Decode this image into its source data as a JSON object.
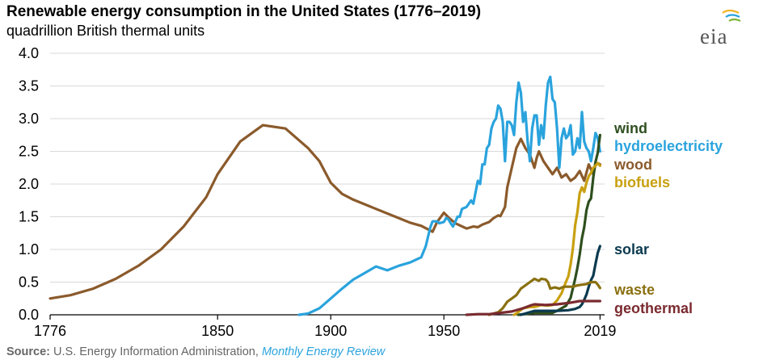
{
  "title": "Renewable energy consumption in the United States (1776–2019)",
  "subtitle": "quadrillion British thermal units",
  "logo_text": "eia",
  "logo_icon": "eia-sun-arc-icon",
  "source": {
    "label": "Source:",
    "org": "U.S. Energy Information Administration,",
    "publication": "Monthly Energy Review"
  },
  "chart_data": {
    "type": "line",
    "title": "Renewable energy consumption in the United States (1776–2019)",
    "ylabel": "quadrillion British thermal units",
    "xlabel": "",
    "xlim": [
      1776,
      2021
    ],
    "ylim": [
      0,
      4.0
    ],
    "grid": true,
    "y_ticks": [
      0.0,
      0.5,
      1.0,
      1.5,
      2.0,
      2.5,
      3.0,
      3.5,
      4.0
    ],
    "y_tick_labels": [
      "0.0",
      "0.5",
      "1.0",
      "1.5",
      "2.0",
      "2.5",
      "3.0",
      "3.5",
      "4.0"
    ],
    "x_ticks": [
      1776,
      1850,
      1900,
      1950,
      2019
    ],
    "x_tick_labels": [
      "1776",
      "1850",
      "1900",
      "1950",
      "2019"
    ],
    "legend_position": "right of plot, labels at line ends",
    "series": [
      {
        "name": "wood",
        "color": "#8b5a2b",
        "points": [
          [
            1776,
            0.25
          ],
          [
            1785,
            0.3
          ],
          [
            1795,
            0.4
          ],
          [
            1805,
            0.55
          ],
          [
            1815,
            0.75
          ],
          [
            1825,
            1.0
          ],
          [
            1835,
            1.35
          ],
          [
            1845,
            1.8
          ],
          [
            1850,
            2.15
          ],
          [
            1860,
            2.65
          ],
          [
            1870,
            2.9
          ],
          [
            1880,
            2.85
          ],
          [
            1890,
            2.55
          ],
          [
            1895,
            2.35
          ],
          [
            1900,
            2.02
          ],
          [
            1905,
            1.85
          ],
          [
            1910,
            1.76
          ],
          [
            1920,
            1.62
          ],
          [
            1930,
            1.48
          ],
          [
            1935,
            1.41
          ],
          [
            1940,
            1.36
          ],
          [
            1945,
            1.27
          ],
          [
            1947,
            1.42
          ],
          [
            1950,
            1.56
          ],
          [
            1952,
            1.49
          ],
          [
            1955,
            1.4
          ],
          [
            1960,
            1.32
          ],
          [
            1963,
            1.35
          ],
          [
            1965,
            1.34
          ],
          [
            1967,
            1.38
          ],
          [
            1970,
            1.42
          ],
          [
            1972,
            1.48
          ],
          [
            1974,
            1.52
          ],
          [
            1975,
            1.51
          ],
          [
            1977,
            1.65
          ],
          [
            1978,
            1.95
          ],
          [
            1980,
            2.25
          ],
          [
            1982,
            2.55
          ],
          [
            1984,
            2.69
          ],
          [
            1986,
            2.55
          ],
          [
            1988,
            2.45
          ],
          [
            1990,
            2.25
          ],
          [
            1991,
            2.4
          ],
          [
            1992,
            2.5
          ],
          [
            1994,
            2.35
          ],
          [
            1996,
            2.25
          ],
          [
            1998,
            2.15
          ],
          [
            2000,
            2.25
          ],
          [
            2002,
            2.1
          ],
          [
            2004,
            2.15
          ],
          [
            2006,
            2.05
          ],
          [
            2008,
            2.1
          ],
          [
            2010,
            2.2
          ],
          [
            2012,
            2.05
          ],
          [
            2014,
            2.3
          ],
          [
            2016,
            2.15
          ],
          [
            2017,
            2.3
          ],
          [
            2018,
            2.32
          ],
          [
            2019,
            2.3
          ]
        ]
      },
      {
        "name": "hydroelectricity",
        "color": "#2aa3dd",
        "points": [
          [
            1886,
            0.0
          ],
          [
            1890,
            0.02
          ],
          [
            1895,
            0.1
          ],
          [
            1900,
            0.25
          ],
          [
            1905,
            0.4
          ],
          [
            1910,
            0.54
          ],
          [
            1915,
            0.64
          ],
          [
            1920,
            0.74
          ],
          [
            1925,
            0.68
          ],
          [
            1930,
            0.75
          ],
          [
            1935,
            0.8
          ],
          [
            1940,
            0.88
          ],
          [
            1942,
            1.05
          ],
          [
            1944,
            1.34
          ],
          [
            1945,
            1.43
          ],
          [
            1947,
            1.43
          ],
          [
            1948,
            1.4
          ],
          [
            1950,
            1.42
          ],
          [
            1951,
            1.48
          ],
          [
            1952,
            1.46
          ],
          [
            1953,
            1.4
          ],
          [
            1954,
            1.35
          ],
          [
            1955,
            1.42
          ],
          [
            1956,
            1.5
          ],
          [
            1957,
            1.5
          ],
          [
            1958,
            1.62
          ],
          [
            1960,
            1.65
          ],
          [
            1962,
            1.75
          ],
          [
            1963,
            1.7
          ],
          [
            1965,
            2.05
          ],
          [
            1966,
            2.0
          ],
          [
            1967,
            2.3
          ],
          [
            1968,
            2.3
          ],
          [
            1969,
            2.55
          ],
          [
            1970,
            2.6
          ],
          [
            1971,
            2.85
          ],
          [
            1972,
            2.95
          ],
          [
            1973,
            3.0
          ],
          [
            1974,
            3.2
          ],
          [
            1975,
            3.15
          ],
          [
            1976,
            2.95
          ],
          [
            1977,
            2.35
          ],
          [
            1978,
            2.95
          ],
          [
            1979,
            2.95
          ],
          [
            1980,
            2.9
          ],
          [
            1981,
            2.75
          ],
          [
            1982,
            3.25
          ],
          [
            1983,
            3.55
          ],
          [
            1984,
            3.4
          ],
          [
            1985,
            2.95
          ],
          [
            1986,
            3.1
          ],
          [
            1987,
            2.65
          ],
          [
            1988,
            2.35
          ],
          [
            1989,
            2.85
          ],
          [
            1990,
            3.05
          ],
          [
            1991,
            3.05
          ],
          [
            1992,
            2.6
          ],
          [
            1993,
            2.9
          ],
          [
            1994,
            2.7
          ],
          [
            1995,
            3.2
          ],
          [
            1996,
            3.55
          ],
          [
            1997,
            3.64
          ],
          [
            1998,
            3.3
          ],
          [
            1999,
            3.25
          ],
          [
            2000,
            2.85
          ],
          [
            2001,
            2.25
          ],
          [
            2002,
            2.7
          ],
          [
            2003,
            2.85
          ],
          [
            2004,
            2.7
          ],
          [
            2005,
            2.75
          ],
          [
            2006,
            2.9
          ],
          [
            2007,
            2.45
          ],
          [
            2008,
            2.5
          ],
          [
            2009,
            2.7
          ],
          [
            2010,
            2.55
          ],
          [
            2011,
            3.1
          ],
          [
            2012,
            2.65
          ],
          [
            2013,
            2.55
          ],
          [
            2014,
            2.5
          ],
          [
            2015,
            2.35
          ],
          [
            2016,
            2.55
          ],
          [
            2017,
            2.78
          ],
          [
            2018,
            2.7
          ],
          [
            2019,
            2.5
          ]
        ]
      },
      {
        "name": "wind",
        "color": "#2f4f1f",
        "points": [
          [
            1983,
            0.0
          ],
          [
            1990,
            0.03
          ],
          [
            1995,
            0.03
          ],
          [
            1998,
            0.03
          ],
          [
            2000,
            0.06
          ],
          [
            2002,
            0.1
          ],
          [
            2004,
            0.14
          ],
          [
            2006,
            0.26
          ],
          [
            2008,
            0.55
          ],
          [
            2009,
            0.72
          ],
          [
            2010,
            0.92
          ],
          [
            2011,
            1.17
          ],
          [
            2012,
            1.34
          ],
          [
            2013,
            1.6
          ],
          [
            2014,
            1.73
          ],
          [
            2015,
            1.78
          ],
          [
            2016,
            2.1
          ],
          [
            2017,
            2.34
          ],
          [
            2018,
            2.48
          ],
          [
            2019,
            2.75
          ]
        ]
      },
      {
        "name": "biofuels",
        "color": "#c8a010",
        "points": [
          [
            1981,
            0.0
          ],
          [
            1982,
            0.02
          ],
          [
            1985,
            0.1
          ],
          [
            1988,
            0.12
          ],
          [
            1990,
            0.12
          ],
          [
            1993,
            0.15
          ],
          [
            1996,
            0.14
          ],
          [
            1998,
            0.15
          ],
          [
            2000,
            0.22
          ],
          [
            2002,
            0.33
          ],
          [
            2004,
            0.51
          ],
          [
            2005,
            0.59
          ],
          [
            2006,
            0.77
          ],
          [
            2007,
            1.02
          ],
          [
            2008,
            1.37
          ],
          [
            2009,
            1.57
          ],
          [
            2010,
            1.86
          ],
          [
            2011,
            1.95
          ],
          [
            2012,
            1.88
          ],
          [
            2013,
            2.02
          ],
          [
            2014,
            2.12
          ],
          [
            2015,
            2.17
          ],
          [
            2016,
            2.25
          ],
          [
            2017,
            2.28
          ],
          [
            2018,
            2.32
          ],
          [
            2019,
            2.28
          ]
        ]
      },
      {
        "name": "solar",
        "color": "#0b3a4f",
        "points": [
          [
            1984,
            0.0
          ],
          [
            1990,
            0.06
          ],
          [
            2000,
            0.06
          ],
          [
            2005,
            0.07
          ],
          [
            2008,
            0.09
          ],
          [
            2010,
            0.12
          ],
          [
            2011,
            0.16
          ],
          [
            2012,
            0.23
          ],
          [
            2013,
            0.31
          ],
          [
            2014,
            0.43
          ],
          [
            2015,
            0.53
          ],
          [
            2016,
            0.6
          ],
          [
            2017,
            0.78
          ],
          [
            2018,
            0.95
          ],
          [
            2019,
            1.05
          ]
        ]
      },
      {
        "name": "waste",
        "color": "#8a7010",
        "points": [
          [
            1970,
            0.0
          ],
          [
            1972,
            0.02
          ],
          [
            1974,
            0.04
          ],
          [
            1976,
            0.1
          ],
          [
            1978,
            0.2
          ],
          [
            1980,
            0.25
          ],
          [
            1982,
            0.3
          ],
          [
            1984,
            0.4
          ],
          [
            1986,
            0.45
          ],
          [
            1988,
            0.5
          ],
          [
            1990,
            0.55
          ],
          [
            1992,
            0.52
          ],
          [
            1993,
            0.55
          ],
          [
            1995,
            0.54
          ],
          [
            1996,
            0.5
          ],
          [
            1997,
            0.4
          ],
          [
            1999,
            0.42
          ],
          [
            2001,
            0.4
          ],
          [
            2003,
            0.43
          ],
          [
            2005,
            0.43
          ],
          [
            2007,
            0.43
          ],
          [
            2009,
            0.45
          ],
          [
            2011,
            0.46
          ],
          [
            2013,
            0.47
          ],
          [
            2015,
            0.5
          ],
          [
            2017,
            0.5
          ],
          [
            2018,
            0.46
          ],
          [
            2019,
            0.41
          ]
        ]
      },
      {
        "name": "geothermal",
        "color": "#7a2b30",
        "points": [
          [
            1960,
            0.0
          ],
          [
            1965,
            0.01
          ],
          [
            1970,
            0.01
          ],
          [
            1975,
            0.03
          ],
          [
            1980,
            0.05
          ],
          [
            1985,
            0.1
          ],
          [
            1988,
            0.14
          ],
          [
            1990,
            0.16
          ],
          [
            1995,
            0.15
          ],
          [
            2000,
            0.16
          ],
          [
            2005,
            0.18
          ],
          [
            2010,
            0.21
          ],
          [
            2015,
            0.21
          ],
          [
            2019,
            0.21
          ]
        ]
      }
    ],
    "line_end_labels": [
      {
        "series": "wind",
        "text": "wind",
        "color": "#2f4f1f"
      },
      {
        "series": "hydroelectricity",
        "text": "hydroelectricity",
        "color": "#2aa3dd"
      },
      {
        "series": "wood",
        "text": "wood",
        "color": "#8b5a2b"
      },
      {
        "series": "biofuels",
        "text": "biofuels",
        "color": "#c8a010"
      },
      {
        "series": "solar",
        "text": "solar",
        "color": "#0b3a4f"
      },
      {
        "series": "waste",
        "text": "waste",
        "color": "#8a7010"
      },
      {
        "series": "geothermal",
        "text": "geothermal",
        "color": "#7a2b30"
      }
    ]
  }
}
